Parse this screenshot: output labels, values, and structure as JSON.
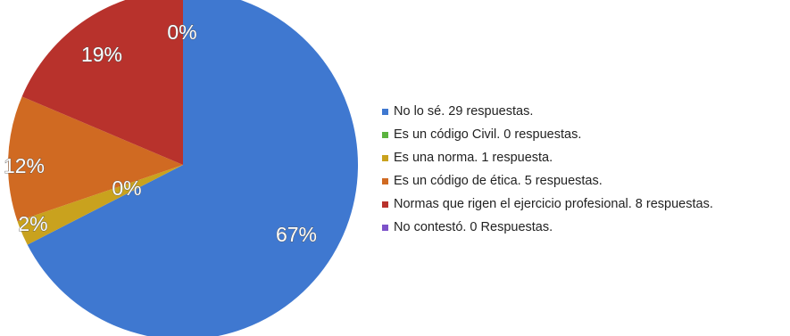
{
  "chart_data": {
    "type": "pie",
    "title": "",
    "slices": [
      {
        "label": "67%",
        "legend": "No lo sé. 29 respuestas.",
        "value": 29,
        "color": "#3f78d0"
      },
      {
        "label": "0%",
        "legend": "Es un código Civil. 0 respuestas.",
        "value": 0,
        "color": "#5bb33f"
      },
      {
        "label": "2%",
        "legend": "Es una norma. 1 respuesta.",
        "value": 1,
        "color": "#c9a21e"
      },
      {
        "label": "12%",
        "legend": "Es un código de ética. 5 respuestas.",
        "value": 5,
        "color": "#d06a22"
      },
      {
        "label": "19%",
        "legend": "Normas que rigen el ejercicio profesional. 8 respuestas.",
        "value": 8,
        "color": "#b8322c"
      },
      {
        "label": "0%",
        "legend": "No contestó. 0 Respuestas.",
        "value": 0,
        "color": "#7d52c9"
      }
    ],
    "legend_position": "right"
  }
}
